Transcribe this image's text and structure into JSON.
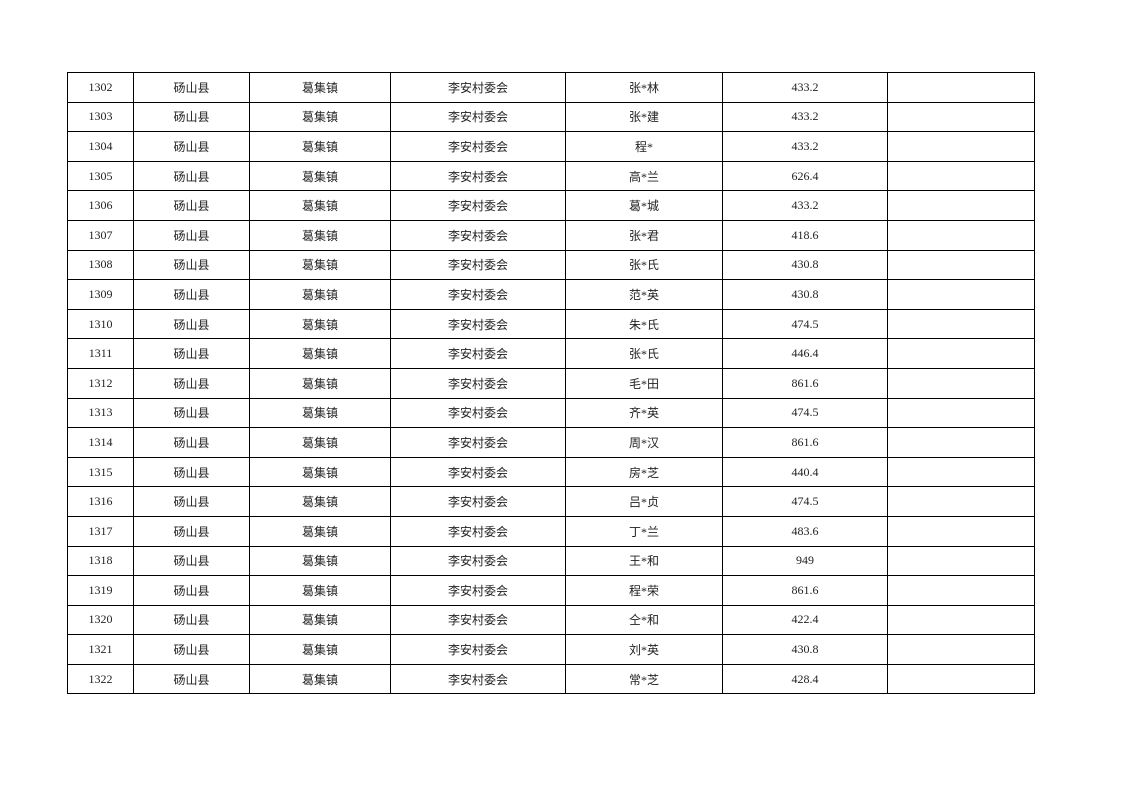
{
  "table": {
    "rows": [
      [
        "1302",
        "砀山县",
        "葛集镇",
        "李安村委会",
        "张*林",
        "433.2",
        ""
      ],
      [
        "1303",
        "砀山县",
        "葛集镇",
        "李安村委会",
        "张*建",
        "433.2",
        ""
      ],
      [
        "1304",
        "砀山县",
        "葛集镇",
        "李安村委会",
        "程*",
        "433.2",
        ""
      ],
      [
        "1305",
        "砀山县",
        "葛集镇",
        "李安村委会",
        "高*兰",
        "626.4",
        ""
      ],
      [
        "1306",
        "砀山县",
        "葛集镇",
        "李安村委会",
        "葛*城",
        "433.2",
        ""
      ],
      [
        "1307",
        "砀山县",
        "葛集镇",
        "李安村委会",
        "张*君",
        "418.6",
        ""
      ],
      [
        "1308",
        "砀山县",
        "葛集镇",
        "李安村委会",
        "张*氏",
        "430.8",
        ""
      ],
      [
        "1309",
        "砀山县",
        "葛集镇",
        "李安村委会",
        "范*英",
        "430.8",
        ""
      ],
      [
        "1310",
        "砀山县",
        "葛集镇",
        "李安村委会",
        "朱*氏",
        "474.5",
        ""
      ],
      [
        "1311",
        "砀山县",
        "葛集镇",
        "李安村委会",
        "张*氏",
        "446.4",
        ""
      ],
      [
        "1312",
        "砀山县",
        "葛集镇",
        "李安村委会",
        "毛*田",
        "861.6",
        ""
      ],
      [
        "1313",
        "砀山县",
        "葛集镇",
        "李安村委会",
        "齐*英",
        "474.5",
        ""
      ],
      [
        "1314",
        "砀山县",
        "葛集镇",
        "李安村委会",
        "周*汉",
        "861.6",
        ""
      ],
      [
        "1315",
        "砀山县",
        "葛集镇",
        "李安村委会",
        "房*芝",
        "440.4",
        ""
      ],
      [
        "1316",
        "砀山县",
        "葛集镇",
        "李安村委会",
        "吕*贞",
        "474.5",
        ""
      ],
      [
        "1317",
        "砀山县",
        "葛集镇",
        "李安村委会",
        "丁*兰",
        "483.6",
        ""
      ],
      [
        "1318",
        "砀山县",
        "葛集镇",
        "李安村委会",
        "王*和",
        "949",
        ""
      ],
      [
        "1319",
        "砀山县",
        "葛集镇",
        "李安村委会",
        "程*荣",
        "861.6",
        ""
      ],
      [
        "1320",
        "砀山县",
        "葛集镇",
        "李安村委会",
        "仝*和",
        "422.4",
        ""
      ],
      [
        "1321",
        "砀山县",
        "葛集镇",
        "李安村委会",
        "刘*英",
        "430.8",
        ""
      ],
      [
        "1322",
        "砀山县",
        "葛集镇",
        "李安村委会",
        "常*芝",
        "428.4",
        ""
      ]
    ]
  }
}
